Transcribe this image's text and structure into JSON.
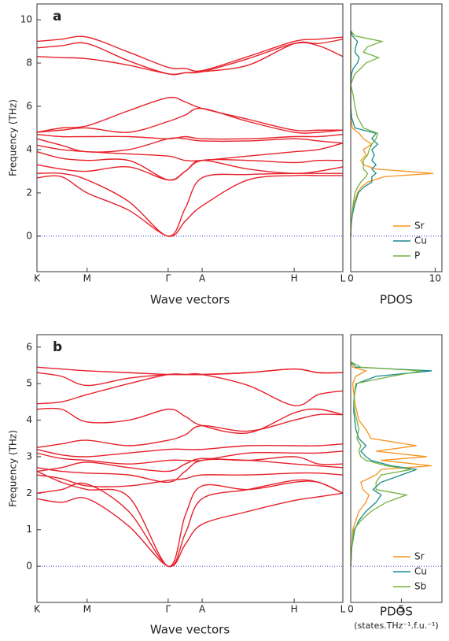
{
  "chart_data": [
    {
      "type": "bands",
      "label": "a",
      "xlabel": "Wave vectors",
      "ylabel": "Frequency (THz)",
      "color": "#e8202a",
      "x": [
        0,
        0.08,
        0.164,
        0.3,
        0.429,
        0.485,
        0.54,
        0.69,
        0.841,
        0.92,
        1.0
      ],
      "xlim": [
        0,
        1
      ],
      "xticks": [
        {
          "value": 0,
          "label": "K"
        },
        {
          "value": 0.164,
          "label": "M"
        },
        {
          "value": 0.429,
          "label": "Γ"
        },
        {
          "value": 0.54,
          "label": "A"
        },
        {
          "value": 0.841,
          "label": "H"
        },
        {
          "value": 1.0,
          "label": "L"
        }
      ],
      "ylim": [
        -1.64,
        10.73
      ],
      "yticks": [
        0,
        2,
        4,
        6,
        8,
        10
      ],
      "zero_line": 0,
      "zero_line_color": "#3333cc",
      "series": [
        {
          "values": [
            2.7,
            2.75,
            2.0,
            1.2,
            0,
            0.7,
            1.4,
            2.6,
            2.8,
            2.8,
            2.8
          ]
        },
        {
          "values": [
            2.9,
            2.9,
            2.6,
            1.6,
            0,
            1.3,
            2.7,
            2.85,
            2.9,
            2.9,
            2.9
          ]
        },
        {
          "values": [
            3.3,
            3.1,
            3.0,
            3.2,
            2.6,
            3.0,
            3.5,
            3.1,
            2.9,
            3.0,
            3.2
          ]
        },
        {
          "values": [
            3.9,
            3.6,
            3.5,
            3.5,
            2.6,
            3.0,
            3.5,
            3.5,
            3.4,
            3.5,
            3.5
          ]
        },
        {
          "values": [
            4.2,
            4.0,
            3.9,
            3.8,
            3.7,
            3.5,
            3.5,
            3.7,
            3.9,
            4.0,
            4.3
          ]
        },
        {
          "values": [
            4.5,
            4.2,
            3.9,
            4.0,
            4.5,
            4.5,
            4.4,
            4.4,
            4.5,
            4.4,
            4.3
          ]
        },
        {
          "values": [
            4.7,
            4.6,
            4.6,
            4.6,
            4.5,
            4.6,
            4.5,
            4.5,
            4.6,
            4.6,
            4.7
          ]
        },
        {
          "values": [
            4.8,
            4.9,
            5.0,
            4.8,
            5.3,
            5.6,
            5.9,
            5.3,
            4.8,
            4.8,
            4.9
          ]
        },
        {
          "values": [
            4.8,
            5.0,
            5.1,
            5.8,
            6.4,
            6.2,
            5.9,
            5.4,
            4.9,
            4.9,
            4.9
          ]
        },
        {
          "values": [
            8.3,
            8.25,
            8.2,
            7.9,
            7.5,
            7.55,
            7.6,
            8.2,
            8.9,
            8.8,
            8.3
          ]
        },
        {
          "values": [
            8.7,
            8.8,
            8.9,
            8.1,
            7.5,
            7.55,
            7.6,
            7.9,
            8.9,
            8.9,
            9.1
          ]
        },
        {
          "values": [
            9.0,
            9.1,
            9.2,
            8.5,
            7.8,
            7.75,
            7.65,
            8.3,
            9.0,
            9.1,
            9.2
          ]
        }
      ]
    },
    {
      "type": "pdos",
      "xlabel": "PDOS",
      "legend": "lower right",
      "x": [
        0,
        0.5,
        1,
        1.5,
        2,
        2.25,
        2.5,
        2.75,
        2.9,
        3.1,
        3.3,
        3.5,
        3.75,
        4,
        4.25,
        4.5,
        4.75,
        5,
        5.5,
        6,
        6.5,
        7,
        7.5,
        7.75,
        8,
        8.25,
        8.5,
        8.75,
        9,
        9.25,
        9.5
      ],
      "xlim": [
        0,
        10.8
      ],
      "xticks": [
        0,
        10
      ],
      "ylim": [
        -1.64,
        10.73
      ],
      "zero_line": 0,
      "zero_line_color": "#3333cc",
      "series": [
        {
          "name": "Sr",
          "color": "#f7941d",
          "values": [
            0,
            0.05,
            0.2,
            0.4,
            0.8,
            1.2,
            2,
            4,
            9.8,
            3,
            1.5,
            1.2,
            1.8,
            1.5,
            2.5,
            1.5,
            1,
            0.2,
            0,
            0,
            0,
            0,
            0,
            0,
            0,
            0,
            0,
            0,
            0,
            0,
            0
          ]
        },
        {
          "name": "Cu",
          "color": "#1a8a8a",
          "values": [
            0,
            0.05,
            0.2,
            0.5,
            0.9,
            1.5,
            2.5,
            2.5,
            3,
            2.5,
            3,
            2.5,
            2.8,
            2.5,
            3.2,
            2.5,
            3,
            0.5,
            0.1,
            0,
            0,
            0,
            0.1,
            0.3,
            0.8,
            1,
            0.5,
            0.6,
            0.8,
            0.2,
            0
          ]
        },
        {
          "name": "P",
          "color": "#76b041",
          "values": [
            0,
            0.05,
            0.15,
            0.3,
            0.5,
            0.8,
            1.2,
            1.8,
            2,
            1.5,
            1.5,
            1.5,
            2,
            2.2,
            2.5,
            3,
            3.2,
            1.5,
            0.8,
            0.5,
            0.3,
            0,
            0.5,
            1.2,
            1.8,
            3.3,
            1.5,
            2,
            3.7,
            0.5,
            0
          ]
        }
      ]
    },
    {
      "type": "bands",
      "label": "b",
      "xlabel": "Wave vectors",
      "ylabel": "Frequency (THz)",
      "color": "#e8202a",
      "x": [
        0,
        0.08,
        0.164,
        0.3,
        0.429,
        0.485,
        0.54,
        0.69,
        0.841,
        0.92,
        1.0
      ],
      "xlim": [
        0,
        1
      ],
      "xticks": [
        {
          "value": 0,
          "label": "K"
        },
        {
          "value": 0.164,
          "label": "M"
        },
        {
          "value": 0.429,
          "label": "Γ"
        },
        {
          "value": 0.54,
          "label": "A"
        },
        {
          "value": 0.841,
          "label": "H"
        },
        {
          "value": 1.0,
          "label": "L"
        }
      ],
      "ylim": [
        -0.99,
        6.34
      ],
      "yticks": [
        0,
        1,
        2,
        3,
        4,
        5,
        6
      ],
      "zero_line": 0,
      "zero_line_color": "#3333cc",
      "series": [
        {
          "values": [
            1.85,
            1.75,
            1.85,
            1.1,
            0,
            0.6,
            1.15,
            1.5,
            1.8,
            1.9,
            2.0
          ]
        },
        {
          "values": [
            2.0,
            2.1,
            2.25,
            1.5,
            0,
            0.9,
            1.85,
            2.1,
            2.35,
            2.3,
            2.0
          ]
        },
        {
          "values": [
            2.6,
            2.3,
            2.1,
            1.9,
            0,
            1.4,
            2.2,
            2.1,
            2.3,
            2.3,
            2.0
          ]
        },
        {
          "values": [
            2.5,
            2.4,
            2.2,
            2.2,
            2.35,
            2.4,
            2.5,
            2.5,
            2.55,
            2.55,
            2.5
          ]
        },
        {
          "values": [
            2.7,
            2.6,
            2.55,
            2.5,
            2.3,
            2.6,
            2.9,
            2.9,
            2.8,
            2.75,
            2.7
          ]
        },
        {
          "values": [
            2.6,
            2.7,
            2.85,
            2.7,
            2.6,
            2.8,
            2.95,
            2.9,
            3.0,
            2.8,
            2.8
          ]
        },
        {
          "values": [
            3.1,
            2.95,
            2.9,
            2.8,
            2.9,
            2.9,
            2.9,
            3.1,
            3.1,
            3.1,
            3.15
          ]
        },
        {
          "values": [
            3.2,
            3.05,
            3.0,
            3.1,
            3.2,
            3.2,
            3.2,
            3.3,
            3.3,
            3.3,
            3.35
          ]
        },
        {
          "values": [
            3.25,
            3.35,
            3.45,
            3.3,
            3.45,
            3.6,
            3.85,
            3.7,
            4.0,
            4.15,
            4.15
          ]
        },
        {
          "values": [
            4.3,
            4.3,
            3.95,
            4.0,
            4.3,
            4.1,
            3.85,
            3.65,
            4.2,
            4.3,
            4.15
          ]
        },
        {
          "values": [
            4.45,
            4.5,
            4.7,
            5.0,
            5.25,
            5.25,
            5.25,
            4.95,
            4.4,
            4.7,
            4.8
          ]
        },
        {
          "values": [
            5.3,
            5.2,
            4.95,
            5.15,
            5.25,
            5.25,
            5.25,
            5.3,
            5.4,
            5.3,
            5.3
          ]
        },
        {
          "values": [
            5.45,
            5.4,
            5.35,
            5.3,
            5.25,
            5.25,
            5.25,
            5.3,
            5.4,
            5.3,
            5.3
          ]
        }
      ]
    },
    {
      "type": "pdos",
      "xlabel": "PDOS",
      "xunit": "(states.THz⁻¹.f.u.⁻¹)",
      "legend": "lower right",
      "x": [
        0,
        0.5,
        1,
        1.25,
        1.5,
        1.75,
        1.95,
        2.1,
        2.3,
        2.5,
        2.65,
        2.75,
        2.9,
        3.0,
        3.15,
        3.3,
        3.5,
        3.75,
        4,
        4.25,
        4.5,
        4.75,
        5,
        5.2,
        5.35,
        5.45,
        5.6
      ],
      "xlim": [
        0,
        9
      ],
      "xticks": [
        0,
        5
      ],
      "ylim": [
        -0.99,
        6.34
      ],
      "zero_line": 0,
      "zero_line_color": "#3333cc",
      "series": [
        {
          "name": "Sr",
          "color": "#f7941d",
          "values": [
            0,
            0.1,
            0.2,
            0.5,
            0.8,
            1.5,
            1.8,
            1.2,
            1,
            2.5,
            3,
            8,
            3,
            7.5,
            2.5,
            6.5,
            2,
            1.5,
            0.8,
            0.6,
            0.4,
            0.3,
            0.2,
            0.5,
            1.5,
            0.2,
            0
          ]
        },
        {
          "name": "Cu",
          "color": "#1a8a8a",
          "values": [
            0,
            0.1,
            0.4,
            0.8,
            1.5,
            2.5,
            3,
            2.2,
            3,
            5,
            6.5,
            4,
            2,
            1.5,
            1,
            1.5,
            0.8,
            0.5,
            0.4,
            0.3,
            0.3,
            0.4,
            0.6,
            2.5,
            8,
            0.5,
            0
          ]
        },
        {
          "name": "Sb",
          "color": "#76b041",
          "values": [
            0,
            0.1,
            0.3,
            1,
            2,
            3.5,
            5.5,
            2.5,
            2.5,
            3,
            6,
            3.5,
            1.5,
            1,
            0.8,
            1,
            0.6,
            0.8,
            0.6,
            0.4,
            0.3,
            0.4,
            0.5,
            4,
            7,
            1,
            0
          ]
        }
      ]
    }
  ]
}
